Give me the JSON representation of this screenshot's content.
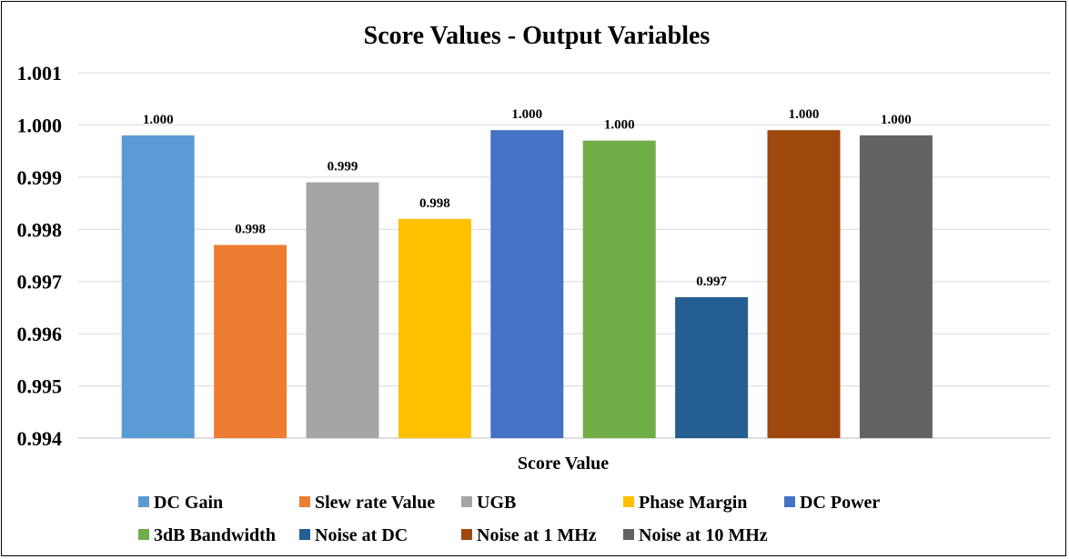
{
  "chart_data": {
    "type": "bar",
    "title": "Score Values - Output Variables",
    "xlabel": "Score Value",
    "ylabel": "",
    "ylim": [
      0.994,
      1.001
    ],
    "yticks": [
      "0.994",
      "0.995",
      "0.996",
      "0.997",
      "0.998",
      "0.999",
      "1.000",
      "1.001"
    ],
    "grid": true,
    "legend_position": "bottom",
    "categories": [
      "Score Value"
    ],
    "series": [
      {
        "name": "DC Gain",
        "values": [
          0.9998
        ],
        "label": "1.000",
        "color": "#5B9BD5"
      },
      {
        "name": "Slew rate Value",
        "values": [
          0.9977
        ],
        "label": "0.998",
        "color": "#ED7D31"
      },
      {
        "name": "UGB",
        "values": [
          0.9989
        ],
        "label": "0.999",
        "color": "#A5A5A5"
      },
      {
        "name": "Phase Margin",
        "values": [
          0.9982
        ],
        "label": "0.998",
        "color": "#FFC000"
      },
      {
        "name": "DC Power",
        "values": [
          0.9999
        ],
        "label": "1.000",
        "color": "#4472C4"
      },
      {
        "name": "3dB Bandwidth",
        "values": [
          0.9997
        ],
        "label": "1.000",
        "color": "#70AD47"
      },
      {
        "name": "Noise at DC",
        "values": [
          0.9967
        ],
        "label": "0.997",
        "color": "#255E91"
      },
      {
        "name": "Noise at 1 MHz",
        "values": [
          0.9999
        ],
        "label": "1.000",
        "color": "#9E480E"
      },
      {
        "name": "Noise at 10 MHz",
        "values": [
          0.9998
        ],
        "label": "1.000",
        "color": "#636363"
      }
    ]
  }
}
